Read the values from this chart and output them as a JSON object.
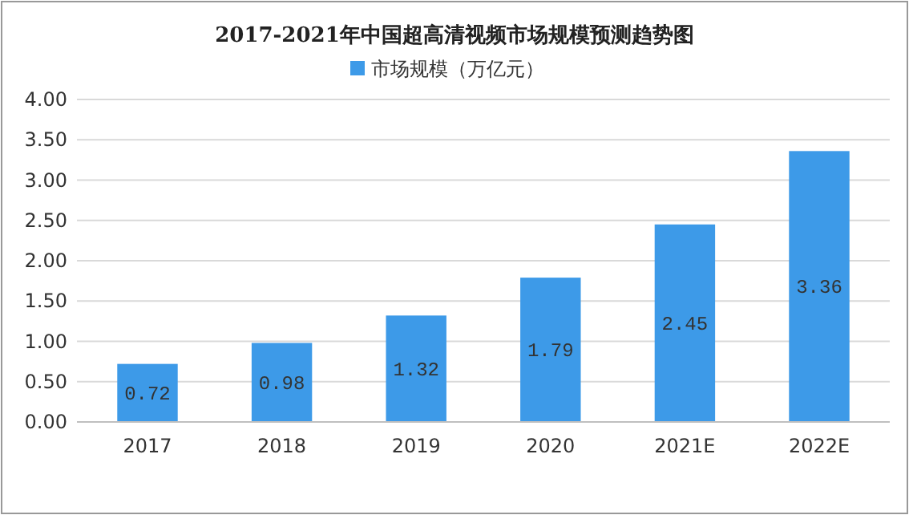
{
  "chart_data": {
    "type": "bar",
    "title": "2017-2021年中国超高清视频市场规模预测趋势图",
    "categories": [
      "2017",
      "2018",
      "2019",
      "2020",
      "2021E",
      "2022E"
    ],
    "series": [
      {
        "name": "市场规模（万亿元）",
        "color": "#3d9ae8",
        "values": [
          0.72,
          0.98,
          1.32,
          1.79,
          2.45,
          3.36
        ]
      }
    ],
    "ylim": [
      0,
      4
    ],
    "yticks": [
      {
        "value": 0,
        "label": "0.00"
      },
      {
        "value": 0.5,
        "label": "0.50"
      },
      {
        "value": 1,
        "label": "1.00"
      },
      {
        "value": 1.5,
        "label": "1.50"
      },
      {
        "value": 2,
        "label": "2.00"
      },
      {
        "value": 2.5,
        "label": "2.50"
      },
      {
        "value": 3,
        "label": "3.00"
      },
      {
        "value": 3.5,
        "label": "3.50"
      },
      {
        "value": 4,
        "label": "4.00"
      }
    ],
    "grid": "y",
    "legend": "top",
    "data_labels": true
  }
}
